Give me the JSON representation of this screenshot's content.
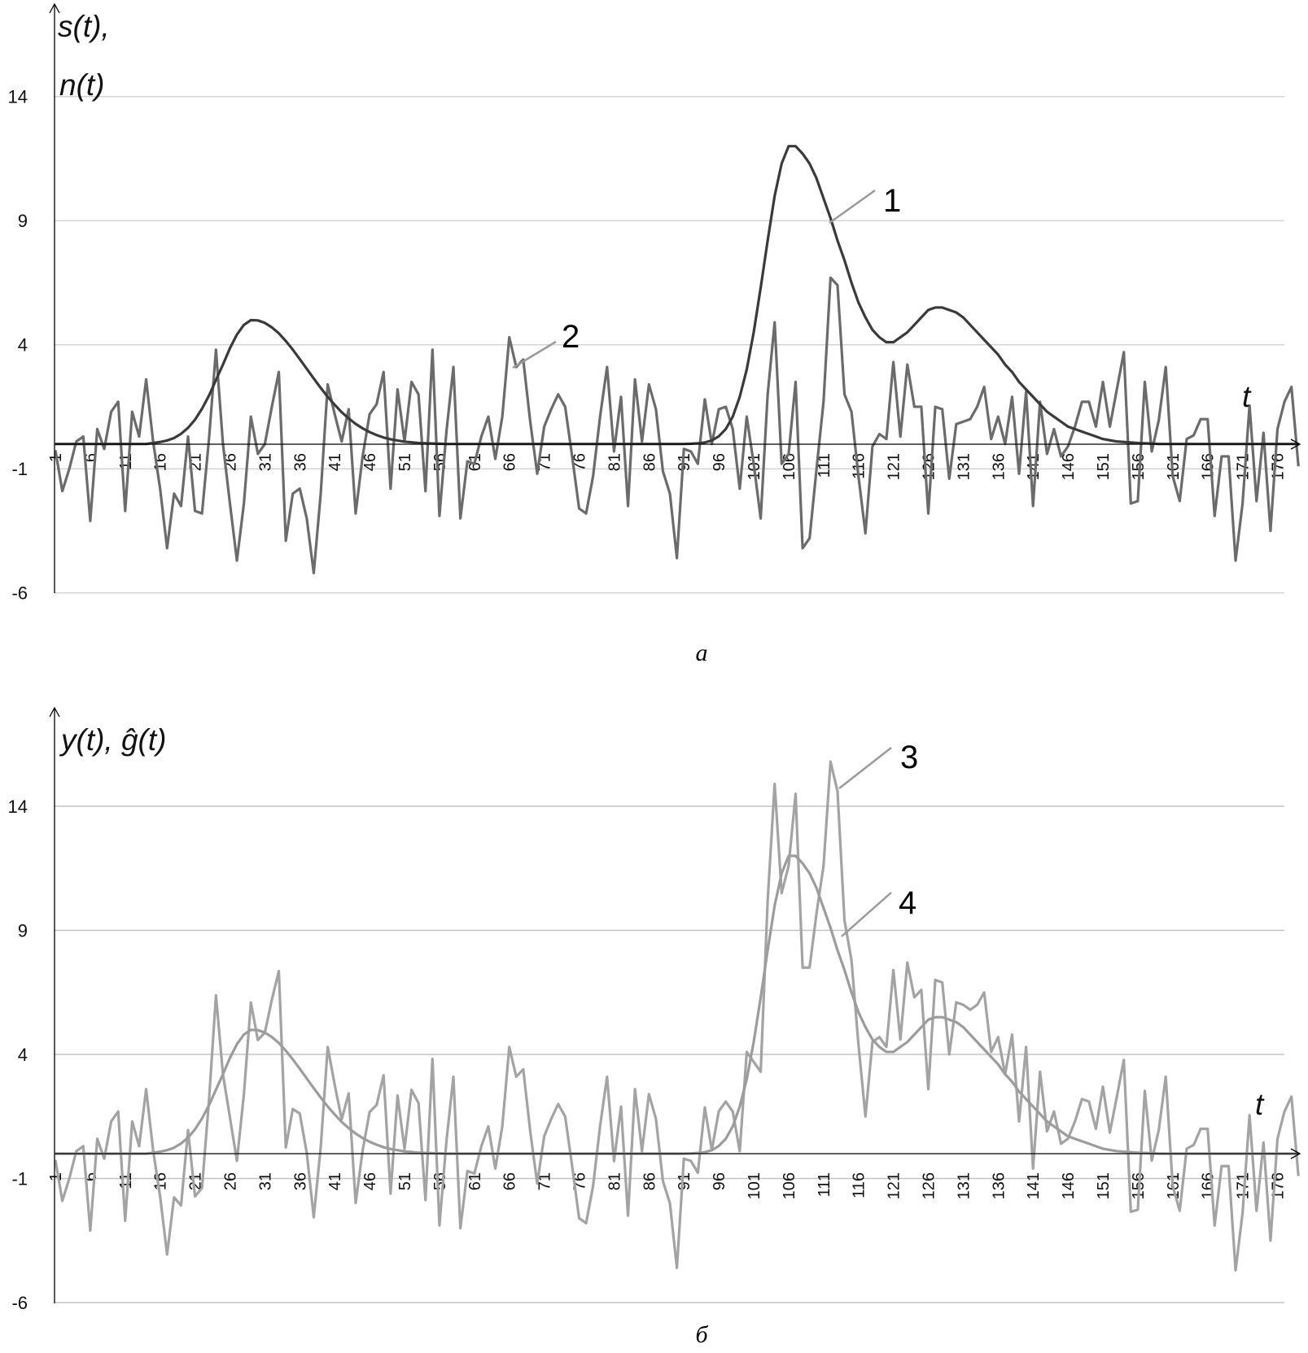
{
  "chart_data": [
    {
      "type": "line",
      "panel_caption": "а",
      "ylabel_lines": [
        "s(t),",
        "n(t)"
      ],
      "xlabel": "t",
      "yticks": [
        14,
        9,
        4,
        -1,
        -6
      ],
      "ylim": [
        -6,
        14
      ],
      "xticks": [
        1,
        6,
        11,
        16,
        21,
        26,
        31,
        36,
        41,
        46,
        51,
        56,
        61,
        66,
        71,
        76,
        81,
        86,
        91,
        96,
        101,
        106,
        111,
        116,
        121,
        126,
        131,
        136,
        141,
        146,
        151,
        156,
        161,
        166,
        171,
        176
      ],
      "xlim": [
        1,
        179
      ],
      "grid": true,
      "colors": {
        "series_1": "#3a3a3a",
        "series_2": "#6b6b6b"
      },
      "series": [
        {
          "name": "1",
          "values": [
            0,
            0,
            0,
            0,
            0,
            0,
            0,
            0,
            0,
            0,
            0,
            0,
            0,
            0,
            0.04,
            0.08,
            0.14,
            0.24,
            0.41,
            0.65,
            0.98,
            1.42,
            1.95,
            2.58,
            3.2,
            3.86,
            4.41,
            4.8,
            4.99,
            4.98,
            4.88,
            4.7,
            4.46,
            4.15,
            3.8,
            3.42,
            3.03,
            2.64,
            2.26,
            1.9,
            1.58,
            1.28,
            1.03,
            0.81,
            0.63,
            0.48,
            0.36,
            0.26,
            0.19,
            0.14,
            0.09,
            0.07,
            0.04,
            0.03,
            0.02,
            0.01,
            0,
            0,
            0,
            0,
            0,
            0,
            0,
            0,
            0,
            0,
            0,
            0,
            0,
            0,
            0,
            0,
            0,
            0,
            0,
            0,
            0,
            0,
            0,
            0,
            0,
            0,
            0,
            0,
            0,
            0,
            0,
            0,
            0,
            0,
            0,
            0.01,
            0.03,
            0.06,
            0.14,
            0.31,
            0.6,
            1.1,
            1.9,
            3.0,
            4.5,
            6.3,
            8.2,
            10.0,
            11.3,
            12.0,
            12.0,
            11.7,
            11.3,
            10.7,
            9.9,
            9.1,
            8.2,
            7.4,
            6.5,
            5.7,
            5.1,
            4.6,
            4.3,
            4.1,
            4.1,
            4.3,
            4.5,
            4.8,
            5.1,
            5.4,
            5.5,
            5.5,
            5.4,
            5.3,
            5.1,
            4.8,
            4.5,
            4.2,
            3.9,
            3.6,
            3.2,
            2.9,
            2.5,
            2.2,
            1.9,
            1.6,
            1.3,
            1.1,
            0.9,
            0.7,
            0.6,
            0.5,
            0.4,
            0.3,
            0.2,
            0.15,
            0.1,
            0.08,
            0.06,
            0.04,
            0.03,
            0.02,
            0,
            0,
            0,
            0,
            0,
            0,
            0,
            0,
            0,
            0,
            0,
            0,
            0,
            0,
            0,
            0,
            0,
            0,
            0,
            0,
            0
          ]
        },
        {
          "name": "2",
          "values": [
            -0.25,
            -1.9,
            -1.0,
            0.1,
            0.3,
            -3.1,
            0.6,
            -0.2,
            1.3,
            1.7,
            -2.7,
            1.3,
            0.3,
            2.6,
            0.1,
            -1.8,
            -4.2,
            -2.0,
            -2.5,
            0.3,
            -2.7,
            -2.8,
            0.2,
            3.8,
            0,
            -2.4,
            -4.7,
            -2.4,
            1.1,
            -0.4,
            0,
            1.5,
            2.9,
            -3.9,
            -2.0,
            -1.8,
            -3.0,
            -5.2,
            -2.0,
            2.4,
            1.2,
            0.1,
            1.4,
            -2.8,
            -0.5,
            1.2,
            1.6,
            2.9,
            -1.8,
            2.2,
            0.1,
            2.5,
            2.0,
            -1.9,
            3.8,
            -2.9,
            0.5,
            3.1,
            -3.0,
            -0.7,
            -0.8,
            0.3,
            1.1,
            -0.6,
            1.1,
            4.3,
            3.1,
            3.4,
            0.9,
            -1.2,
            0.7,
            1.4,
            2.0,
            1.5,
            -0.5,
            -2.6,
            -2.8,
            -1.3,
            1.1,
            3.1,
            -0.3,
            1.9,
            -2.5,
            2.6,
            0.1,
            2.4,
            1.4,
            -1.1,
            -2.0,
            -4.6,
            -0.2,
            -0.3,
            -0.8,
            1.8,
            0,
            1.4,
            1.5,
            0.6,
            -1.8,
            1.1,
            -0.8,
            -3.0,
            2.0,
            4.9,
            -0.8,
            -0.4,
            2.5,
            -4.2,
            -3.8,
            -1.0,
            1.7,
            6.7,
            6.4,
            2.0,
            1.3,
            -1.3,
            -3.6,
            -0.1,
            0.4,
            0.2,
            3.3,
            0.3,
            3.2,
            1.5,
            1.5,
            -2.8,
            1.5,
            1.4,
            -1.4,
            0.8,
            0.9,
            1.0,
            1.5,
            2.3,
            0.2,
            1.1,
            0,
            1.9,
            -1.2,
            2.1,
            -2.5,
            1.7,
            -0.4,
            0.6,
            -0.5,
            -0.1,
            0.7,
            1.7,
            1.7,
            0.7,
            2.5,
            0.7,
            2.2,
            3.7,
            -2.4,
            -2.3,
            2.5,
            -0.3,
            0.95,
            3.1,
            -1.3,
            -2.3,
            0.2,
            0.35,
            1.0,
            1.0,
            -2.9,
            -0.5,
            -0.5,
            -4.7,
            -2.4,
            1.55,
            -2.3,
            0.45,
            -3.5,
            0.6,
            1.7,
            2.3,
            -0.9
          ]
        }
      ]
    },
    {
      "type": "line",
      "panel_caption": "б",
      "ylabel_lines": [
        "y(t), ĝ(t)"
      ],
      "xlabel": "t",
      "yticks": [
        14,
        9,
        4,
        -1,
        -6
      ],
      "ylim": [
        -6,
        14
      ],
      "xticks": [
        1,
        6,
        11,
        16,
        21,
        26,
        31,
        36,
        41,
        46,
        51,
        56,
        61,
        66,
        71,
        76,
        81,
        86,
        91,
        96,
        101,
        106,
        111,
        116,
        121,
        126,
        131,
        136,
        141,
        146,
        151,
        156,
        161,
        166,
        171,
        176
      ],
      "xlim": [
        1,
        179
      ],
      "grid": true,
      "colors": {
        "series_3": "#a3a3a3",
        "series_4": "#9c9c9c"
      },
      "series": [
        {
          "name": "3",
          "values": [
            -0.25,
            -1.9,
            -1.0,
            0.1,
            0.3,
            -3.1,
            0.6,
            -0.2,
            1.3,
            1.7,
            -2.7,
            1.3,
            0.3,
            2.6,
            0.14,
            -1.72,
            -4.06,
            -1.76,
            -2.09,
            0.95,
            -1.72,
            -1.38,
            2.15,
            6.38,
            3.2,
            1.46,
            -0.29,
            2.4,
            6.09,
            4.58,
            4.88,
            6.2,
            7.36,
            0.25,
            1.8,
            1.62,
            0.03,
            -2.56,
            0.26,
            4.3,
            2.78,
            1.38,
            2.43,
            -1.99,
            0.13,
            1.68,
            1.96,
            3.16,
            -1.61,
            2.34,
            0.19,
            2.57,
            2.04,
            -1.87,
            3.82,
            -2.89,
            0.5,
            3.1,
            -3.0,
            -0.7,
            -0.8,
            0.3,
            1.1,
            -0.6,
            1.1,
            4.3,
            3.1,
            3.4,
            0.9,
            -1.2,
            0.7,
            1.4,
            2.0,
            1.5,
            -0.5,
            -2.6,
            -2.8,
            -1.3,
            1.1,
            3.1,
            -0.3,
            1.9,
            -2.5,
            2.6,
            0.1,
            2.4,
            1.4,
            -1.1,
            -2.0,
            -4.6,
            -0.2,
            -0.29,
            -0.77,
            1.86,
            0.14,
            1.71,
            2.1,
            1.7,
            0.1,
            4.1,
            3.7,
            3.3,
            10.2,
            14.9,
            10.5,
            11.6,
            14.5,
            7.5,
            7.5,
            9.7,
            11.6,
            15.8,
            14.6,
            9.4,
            7.8,
            4.4,
            1.5,
            4.5,
            4.7,
            4.3,
            7.4,
            4.6,
            7.7,
            6.3,
            6.6,
            2.6,
            7.0,
            6.9,
            4.0,
            6.1,
            6.0,
            5.8,
            6.0,
            6.5,
            4.1,
            4.7,
            3.2,
            4.8,
            1.3,
            4.3,
            -0.6,
            3.3,
            0.9,
            1.7,
            0.4,
            0.6,
            1.3,
            2.2,
            2.1,
            1.0,
            2.7,
            0.85,
            2.3,
            3.78,
            -2.34,
            -2.26,
            2.53,
            -0.28,
            0.95,
            3.1,
            -1.3,
            -2.3,
            0.2,
            0.35,
            1.0,
            1.0,
            -2.9,
            -0.5,
            -0.5,
            -4.7,
            -2.4,
            1.55,
            -2.3,
            0.45,
            -3.5,
            0.6,
            1.7,
            2.3,
            -0.9
          ]
        },
        {
          "name": "4",
          "values": [
            0,
            0,
            0,
            0,
            0,
            0,
            0,
            0,
            0,
            0,
            0,
            0,
            0,
            0,
            0.04,
            0.08,
            0.14,
            0.24,
            0.41,
            0.65,
            0.98,
            1.42,
            1.95,
            2.58,
            3.2,
            3.86,
            4.41,
            4.8,
            4.99,
            4.98,
            4.88,
            4.7,
            4.46,
            4.15,
            3.8,
            3.42,
            3.03,
            2.64,
            2.26,
            1.9,
            1.58,
            1.28,
            1.03,
            0.81,
            0.63,
            0.48,
            0.36,
            0.26,
            0.19,
            0.14,
            0.09,
            0.07,
            0.04,
            0.03,
            0.02,
            0.01,
            0,
            0,
            0,
            0,
            0,
            0,
            0,
            0,
            0,
            0,
            0,
            0,
            0,
            0,
            0,
            0,
            0,
            0,
            0,
            0,
            0,
            0,
            0,
            0,
            0,
            0,
            0,
            0,
            0,
            0,
            0,
            0,
            0,
            0,
            0,
            0.01,
            0.03,
            0.06,
            0.14,
            0.31,
            0.6,
            1.1,
            1.9,
            3.0,
            4.5,
            6.3,
            8.2,
            10.0,
            11.3,
            12.0,
            12.0,
            11.7,
            11.3,
            10.7,
            9.9,
            9.1,
            8.2,
            7.4,
            6.5,
            5.7,
            5.1,
            4.6,
            4.3,
            4.1,
            4.1,
            4.3,
            4.5,
            4.8,
            5.1,
            5.4,
            5.5,
            5.5,
            5.4,
            5.3,
            5.1,
            4.8,
            4.5,
            4.2,
            3.9,
            3.6,
            3.2,
            2.9,
            2.5,
            2.2,
            1.9,
            1.6,
            1.3,
            1.1,
            0.9,
            0.7,
            0.6,
            0.5,
            0.4,
            0.3,
            0.2,
            0.15,
            0.1,
            0.08,
            0.06,
            0.04,
            0.03,
            0.02,
            0,
            0,
            0,
            0,
            0,
            0,
            0,
            0,
            0,
            0,
            0,
            0,
            0,
            0,
            0,
            0,
            0,
            0,
            0,
            0,
            0
          ]
        }
      ]
    }
  ]
}
